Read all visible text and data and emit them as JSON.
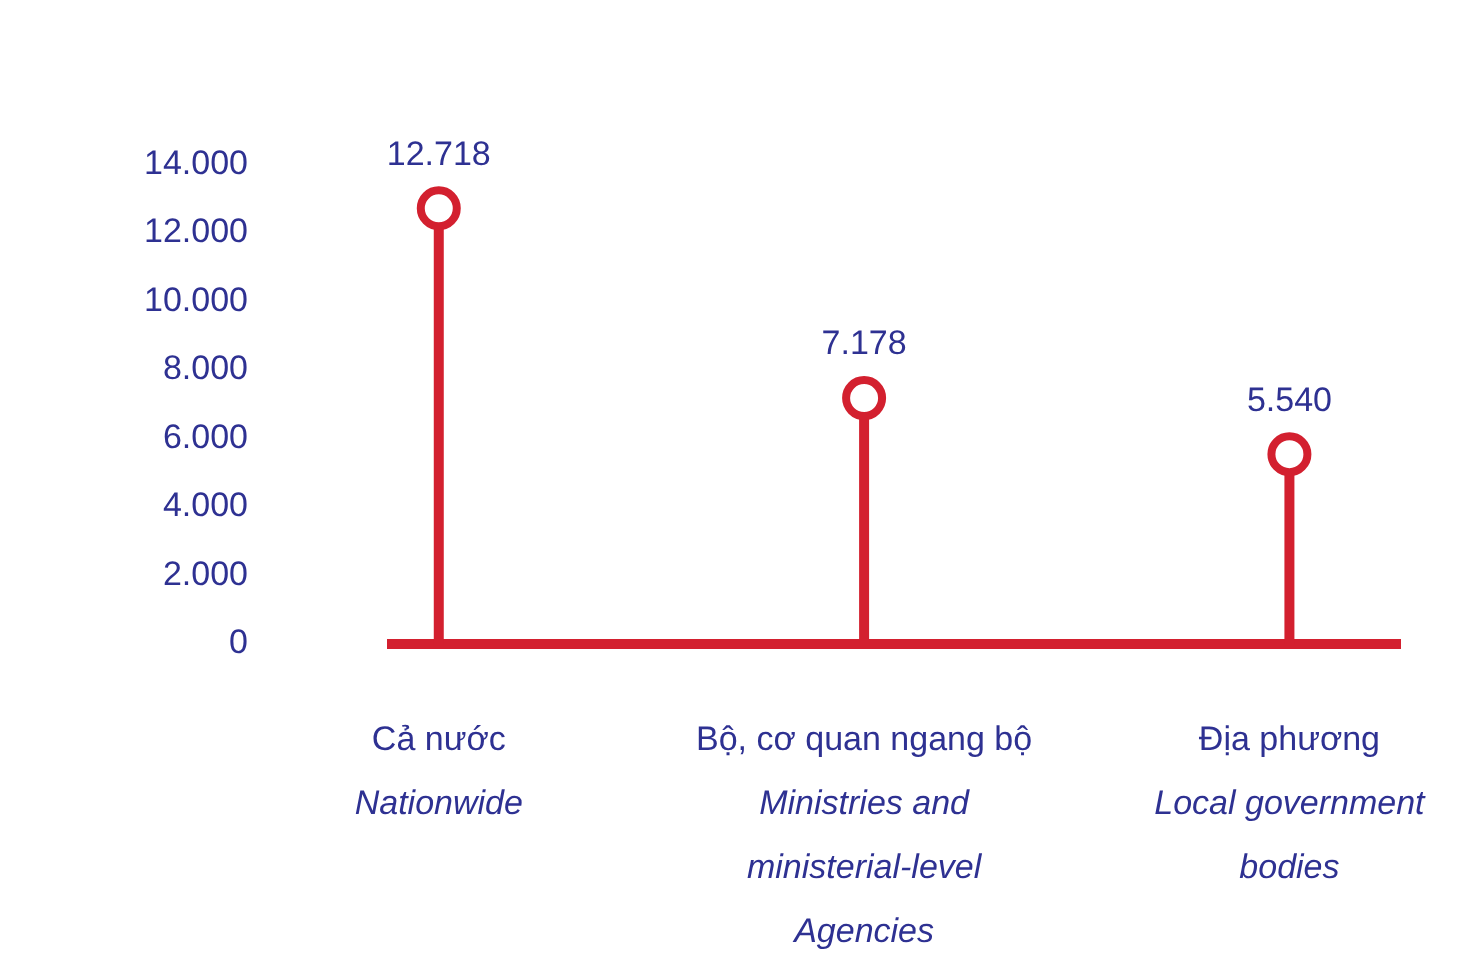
{
  "chart_data": {
    "type": "lollipop",
    "categories": [
      "Cả nước\nNationwide",
      "Bộ, cơ quan ngang bộ\nMinistries and\nministerial-level\nAgencies",
      "Địa phương\nLocal government\nbodies"
    ],
    "values": [
      12718,
      7178,
      5540
    ],
    "value_labels": [
      "12.718",
      "7.178",
      "5.540"
    ],
    "color": "#d3202f",
    "ylim": [
      0,
      14000
    ],
    "yticks": [
      {
        "value": 0,
        "label": "0"
      },
      {
        "value": 2000,
        "label": "2.000"
      },
      {
        "value": 4000,
        "label": "4.000"
      },
      {
        "value": 6000,
        "label": "6.000"
      },
      {
        "value": 8000,
        "label": "8.000"
      },
      {
        "value": 10000,
        "label": "10.000"
      },
      {
        "value": 12000,
        "label": "12.000"
      },
      {
        "value": 14000,
        "label": "14.000"
      }
    ],
    "grid": false,
    "legend": false,
    "marker": "circle"
  }
}
